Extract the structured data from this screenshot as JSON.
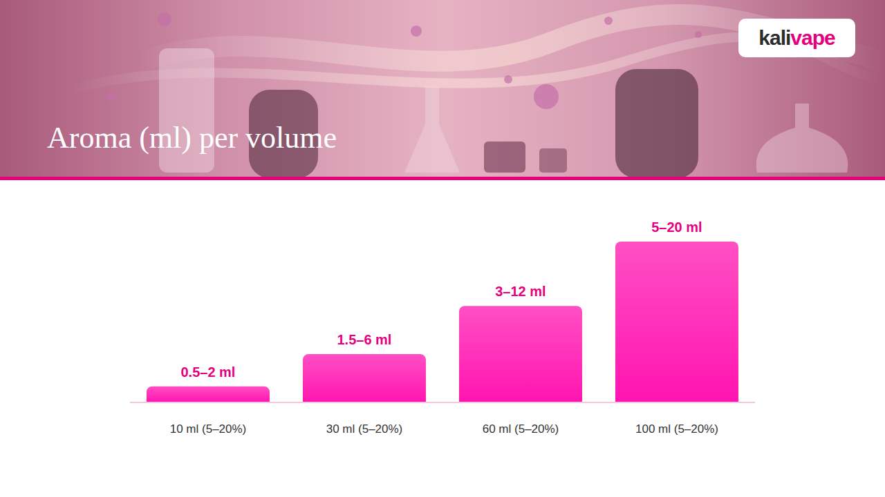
{
  "logo": {
    "dark": "kali",
    "accent": "vape"
  },
  "chart_data": {
    "type": "bar",
    "title": "Aroma (ml) per volume",
    "categories": [
      "10 ml (5–20%)",
      "30 ml (5–20%)",
      "60 ml (5–20%)",
      "100 ml (5–20%)"
    ],
    "values": [
      2,
      6,
      12,
      20
    ],
    "value_labels": [
      "0.5–2 ml",
      "1.5–6 ml",
      "3–12 ml",
      "5–20 ml"
    ],
    "color": "#ff14b0",
    "ylim": [
      0,
      20
    ],
    "grid": false,
    "data_labels": true,
    "tick_labels": "x"
  }
}
